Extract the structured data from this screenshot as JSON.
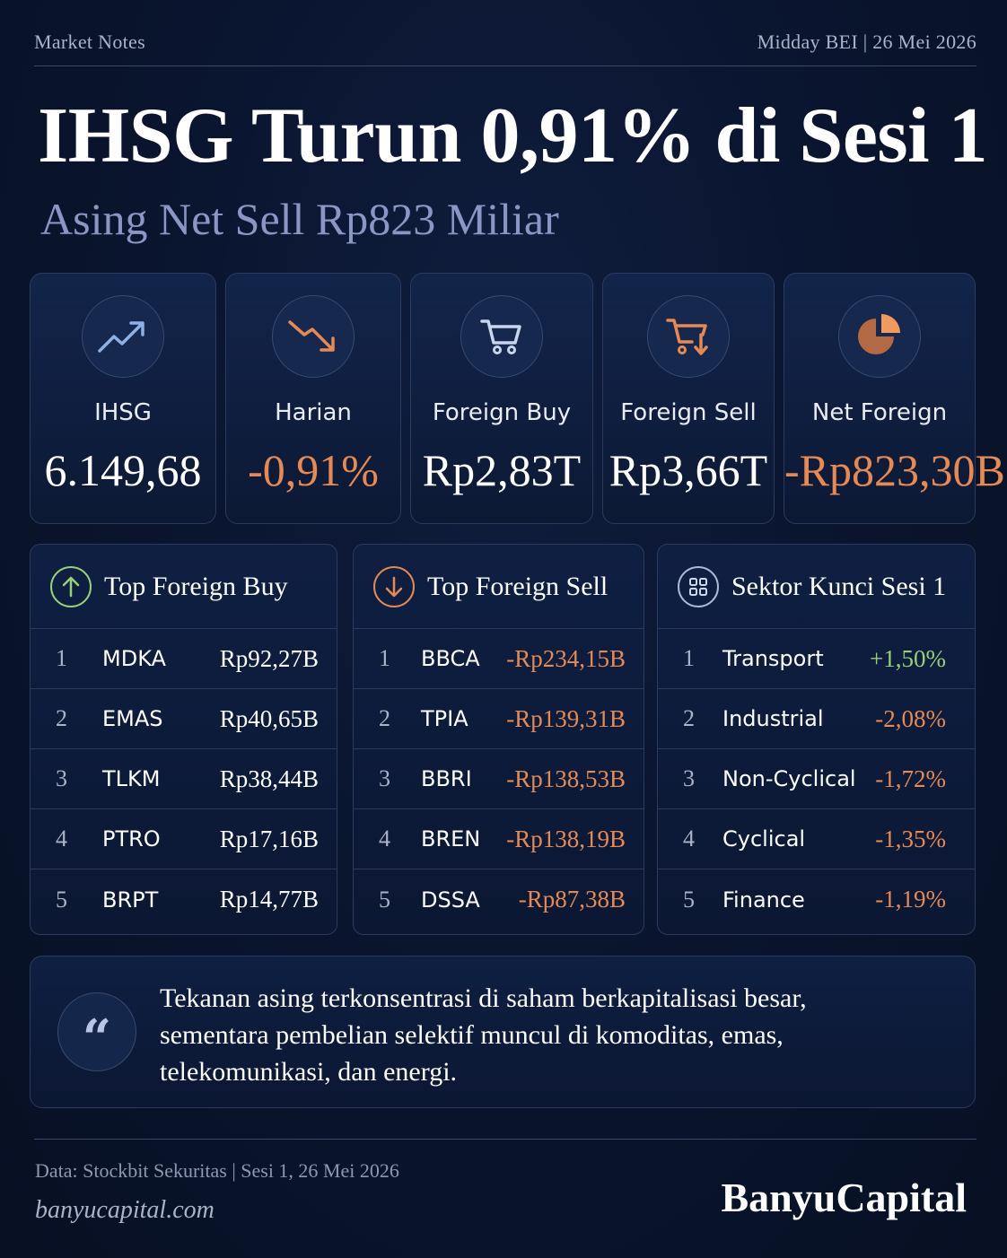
{
  "header": {
    "left": "Market Notes",
    "right": "Midday BEI | 26 Mei 2026"
  },
  "headline": {
    "title": "IHSG Turun 0,91% di Sesi 1",
    "subtitle": "Asing Net Sell Rp823 Miliar"
  },
  "colors": {
    "negative": "#e68a55",
    "positive": "#9ad07a",
    "background": "#0a1530"
  },
  "stats": [
    {
      "icon": "trend-up-icon",
      "label": "IHSG",
      "value": "6.149,68"
    },
    {
      "icon": "trend-down-icon",
      "label": "Harian",
      "value": "-0,91%"
    },
    {
      "icon": "cart-icon",
      "label": "Foreign Buy",
      "value": "Rp2,83T"
    },
    {
      "icon": "cart-down-icon",
      "label": "Foreign Sell",
      "value": "Rp3,66T"
    },
    {
      "icon": "pie-chart-icon",
      "label": "Net Foreign",
      "value": "-Rp823,30B"
    }
  ],
  "panels": {
    "buy": {
      "title": "Top Foreign Buy",
      "icon": "arrow-up-circle-icon",
      "rows": [
        {
          "rank": "1",
          "name": "MDKA",
          "value": "Rp92,27B"
        },
        {
          "rank": "2",
          "name": "EMAS",
          "value": "Rp40,65B"
        },
        {
          "rank": "3",
          "name": "TLKM",
          "value": "Rp38,44B"
        },
        {
          "rank": "4",
          "name": "PTRO",
          "value": "Rp17,16B"
        },
        {
          "rank": "5",
          "name": "BRPT",
          "value": "Rp14,77B"
        }
      ]
    },
    "sell": {
      "title": "Top Foreign Sell",
      "icon": "arrow-down-circle-icon",
      "rows": [
        {
          "rank": "1",
          "name": "BBCA",
          "value": "-Rp234,15B"
        },
        {
          "rank": "2",
          "name": "TPIA",
          "value": "-Rp139,31B"
        },
        {
          "rank": "3",
          "name": "BBRI",
          "value": "-Rp138,53B"
        },
        {
          "rank": "4",
          "name": "BREN",
          "value": "-Rp138,19B"
        },
        {
          "rank": "5",
          "name": "DSSA",
          "value": "-Rp87,38B"
        }
      ]
    },
    "sector": {
      "title": "Sektor Kunci Sesi 1",
      "icon": "grid-icon",
      "rows": [
        {
          "rank": "1",
          "name": "Transport",
          "value": "+1,50%"
        },
        {
          "rank": "2",
          "name": "Industrial",
          "value": "-2,08%"
        },
        {
          "rank": "3",
          "name": "Non-Cyclical",
          "value": "-1,72%"
        },
        {
          "rank": "4",
          "name": "Cyclical",
          "value": "-1,35%"
        },
        {
          "rank": "5",
          "name": "Finance",
          "value": "-1,19%"
        }
      ]
    }
  },
  "quote": {
    "icon": "quote-icon",
    "mark": "“",
    "lines": [
      "Tekanan asing terkonsentrasi di saham berkapitalisasi besar,",
      "sementara pembelian selektif muncul di komoditas, emas,",
      "telekomunikasi, dan energi."
    ]
  },
  "footer": {
    "source": "Data: Stockbit Sekuritas | Sesi 1, 26 Mei 2026",
    "site": "banyucapital.com",
    "brand": "BanyuCapital"
  }
}
